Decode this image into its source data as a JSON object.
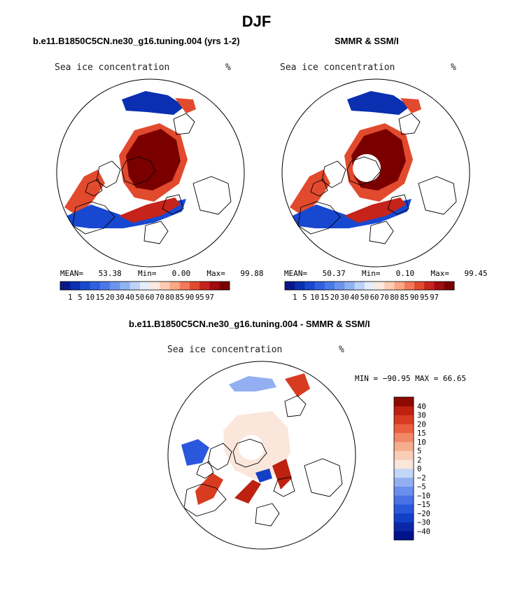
{
  "figure": {
    "title": "DJF",
    "panels": [
      {
        "id": "model",
        "title": "b.e11.B1850C5CN.ne30_g16.tuning.004 (yrs 1-2)",
        "variable": "Sea ice concentration",
        "unit": "%",
        "stats": {
          "mean_label": "MEAN=",
          "mean": "53.38",
          "min_label": "Min=",
          "min": "0.00",
          "max_label": "Max=",
          "max": "99.88"
        }
      },
      {
        "id": "obs",
        "title": "SMMR & SSM/I",
        "variable": "Sea ice concentration",
        "unit": "%",
        "stats": {
          "mean_label": "MEAN=",
          "mean": "50.37",
          "min_label": "Min=",
          "min": "0.10",
          "max_label": "Max=",
          "max": "99.45"
        }
      },
      {
        "id": "diff",
        "title": "b.e11.B1850C5CN.ne30_g16.tuning.004 - SMMR & SSM/I",
        "variable": "Sea ice concentration",
        "unit": "%",
        "minmax": "MIN = −90.95 MAX =   66.65"
      }
    ]
  },
  "chart_data": [
    {
      "type": "heatmap",
      "projection": "north polar stereographic",
      "title": "b.e11.B1850C5CN.ne30_g16.tuning.004 (yrs 1-2)",
      "variable": "Sea ice concentration",
      "unit": "%",
      "mean": 53.38,
      "min": 0.0,
      "max": 99.88,
      "colorbar": {
        "orientation": "horizontal",
        "levels": [
          1,
          5,
          10,
          15,
          20,
          30,
          40,
          50,
          60,
          70,
          80,
          85,
          90,
          95,
          97
        ],
        "colors": [
          "#08188a",
          "#0a2fb0",
          "#1848d0",
          "#3060e0",
          "#4a78e8",
          "#6a95ee",
          "#90b2f2",
          "#bcd2f6",
          "#e4eefb",
          "#fde9de",
          "#fccbb2",
          "#f9a784",
          "#f27a58",
          "#e24a2e",
          "#c6231a",
          "#a10c10",
          "#7a0000"
        ]
      }
    },
    {
      "type": "heatmap",
      "projection": "north polar stereographic",
      "title": "SMMR & SSM/I",
      "variable": "Sea ice concentration",
      "unit": "%",
      "mean": 50.37,
      "min": 0.1,
      "max": 99.45,
      "colorbar": {
        "orientation": "horizontal",
        "levels": [
          1,
          5,
          10,
          15,
          20,
          30,
          40,
          50,
          60,
          70,
          80,
          85,
          90,
          95,
          97
        ],
        "colors": [
          "#08188a",
          "#0a2fb0",
          "#1848d0",
          "#3060e0",
          "#4a78e8",
          "#6a95ee",
          "#90b2f2",
          "#bcd2f6",
          "#e4eefb",
          "#fde9de",
          "#fccbb2",
          "#f9a784",
          "#f27a58",
          "#e24a2e",
          "#c6231a",
          "#a10c10",
          "#7a0000"
        ]
      }
    },
    {
      "type": "heatmap",
      "projection": "north polar stereographic",
      "title": "b.e11.B1850C5CN.ne30_g16.tuning.004 - SMMR & SSM/I",
      "variable": "Sea ice concentration",
      "unit": "%",
      "min": -90.95,
      "max": 66.65,
      "colorbar": {
        "orientation": "vertical",
        "levels": [
          "−40",
          "−30",
          "−20",
          "−15",
          "−10",
          "−5",
          "−2",
          "0",
          "2",
          "5",
          "10",
          "15",
          "20",
          "30",
          "40"
        ],
        "colors": [
          "#00138a",
          "#0a28a6",
          "#1440c8",
          "#2a58dc",
          "#4a72e6",
          "#6a8eec",
          "#93aff2",
          "#c3d6f7",
          "#fbe6dc",
          "#f9cdb6",
          "#f6ad8e",
          "#f08866",
          "#ea603e",
          "#d83c20",
          "#be2110",
          "#8c0a00"
        ]
      }
    }
  ]
}
